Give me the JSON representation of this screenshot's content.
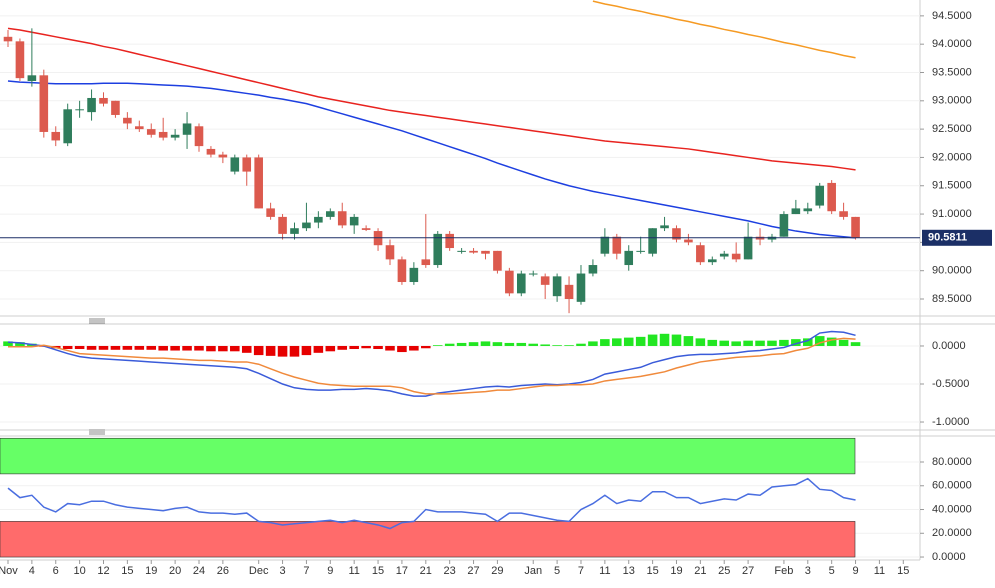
{
  "chart_data": [
    {
      "type": "candlestick",
      "open": [
        94.13,
        94.05,
        93.35,
        93.45,
        92.45,
        92.25,
        92.85,
        92.8,
        93.05,
        93.0,
        92.7,
        92.55,
        92.5,
        92.45,
        92.35,
        92.4,
        92.55,
        92.15,
        92.05,
        91.75,
        92.0,
        92.0,
        91.1,
        90.95,
        90.65,
        90.75,
        90.85,
        90.95,
        91.05,
        90.8,
        90.75,
        90.7,
        90.45,
        90.2,
        89.8,
        90.2,
        90.1,
        90.65,
        90.35,
        90.35,
        90.35,
        90.35,
        90.0,
        89.6,
        89.95,
        89.9,
        89.55,
        89.75,
        89.45,
        89.95,
        90.3,
        90.6,
        90.1,
        90.35,
        90.3,
        90.75,
        90.75,
        90.55,
        90.45,
        90.15,
        90.25,
        90.3,
        90.2,
        90.6,
        90.55,
        90.6,
        91.0,
        91.05,
        91.15,
        91.55,
        91.05,
        90.95
      ],
      "high": [
        94.25,
        94.1,
        94.28,
        93.55,
        92.55,
        92.95,
        93.0,
        93.2,
        93.15,
        93.0,
        92.8,
        92.65,
        92.6,
        92.7,
        92.5,
        92.8,
        92.6,
        92.2,
        92.1,
        92.05,
        92.05,
        92.05,
        91.2,
        91.0,
        90.85,
        91.2,
        91.05,
        91.1,
        91.2,
        91.0,
        90.8,
        90.75,
        90.55,
        90.25,
        90.15,
        91.0,
        90.7,
        90.7,
        90.4,
        90.4,
        90.35,
        90.35,
        90.05,
        90.0,
        90.0,
        89.95,
        89.95,
        89.9,
        90.1,
        90.2,
        90.75,
        90.65,
        90.45,
        90.6,
        90.75,
        90.95,
        90.8,
        90.65,
        90.5,
        90.25,
        90.35,
        90.5,
        90.85,
        90.75,
        90.65,
        91.05,
        91.25,
        91.2,
        91.55,
        91.6,
        91.2,
        90.95
      ],
      "low": [
        93.95,
        93.35,
        93.25,
        92.35,
        92.2,
        92.2,
        92.7,
        92.65,
        92.9,
        92.7,
        92.5,
        92.45,
        92.35,
        92.3,
        92.3,
        92.15,
        92.1,
        92.0,
        91.9,
        91.7,
        91.5,
        91.1,
        90.9,
        90.55,
        90.55,
        90.7,
        90.75,
        90.9,
        90.75,
        90.65,
        90.7,
        90.35,
        90.1,
        89.75,
        89.75,
        90.05,
        90.05,
        90.35,
        90.3,
        90.3,
        90.2,
        89.95,
        89.55,
        89.55,
        89.9,
        89.5,
        89.45,
        89.25,
        89.4,
        89.9,
        90.25,
        90.2,
        90.0,
        90.3,
        90.25,
        90.7,
        90.5,
        90.45,
        90.1,
        90.1,
        90.2,
        90.15,
        90.2,
        90.45,
        90.5,
        90.6,
        91.0,
        91.0,
        91.1,
        91.0,
        90.9,
        90.55
      ],
      "close": [
        94.05,
        93.4,
        93.45,
        92.45,
        92.3,
        92.85,
        92.85,
        93.05,
        92.95,
        92.75,
        92.6,
        92.5,
        92.4,
        92.35,
        92.4,
        92.6,
        92.2,
        92.05,
        92.0,
        92.0,
        91.75,
        91.1,
        90.95,
        90.65,
        90.75,
        90.85,
        90.95,
        91.05,
        90.8,
        90.95,
        90.72,
        90.45,
        90.2,
        89.8,
        90.05,
        90.1,
        90.65,
        90.4,
        90.35,
        90.32,
        90.3,
        90.0,
        89.6,
        89.95,
        89.95,
        89.75,
        89.9,
        89.5,
        89.95,
        90.1,
        90.6,
        90.3,
        90.35,
        90.35,
        90.75,
        90.8,
        90.55,
        90.5,
        90.15,
        90.2,
        90.3,
        90.2,
        90.6,
        90.55,
        90.6,
        91.0,
        91.1,
        91.1,
        91.5,
        91.05,
        90.95,
        90.58
      ],
      "up_color": "#2f7d5c",
      "down_color": "#dc5a4e",
      "xlim": [
        -0.67,
        76.4
      ],
      "ylim": [
        89.2,
        94.78
      ],
      "yticks": [
        {
          "value": 94.5,
          "label": "94.5000"
        },
        {
          "value": 94,
          "label": "94.0000"
        },
        {
          "value": 93.5,
          "label": "93.5000"
        },
        {
          "value": 93,
          "label": "93.0000"
        },
        {
          "value": 92.5,
          "label": "92.5000"
        },
        {
          "value": 92,
          "label": "92.0000"
        },
        {
          "value": 91.5,
          "label": "91.5000"
        },
        {
          "value": 91,
          "label": "91.0000"
        },
        {
          "value": 90.5,
          "label": "90.5000"
        },
        {
          "value": 90,
          "label": "90.0000"
        },
        {
          "value": 89.5,
          "label": "89.5000"
        }
      ],
      "series": [
        {
          "color": "#e8231f",
          "values": [
            94.28,
            94.25,
            94.21,
            94.17,
            94.13,
            94.09,
            94.05,
            94.01,
            93.96,
            93.92,
            93.87,
            93.82,
            93.77,
            93.72,
            93.67,
            93.62,
            93.57,
            93.52,
            93.47,
            93.42,
            93.37,
            93.32,
            93.27,
            93.22,
            93.17,
            93.12,
            93.07,
            93.03,
            92.99,
            92.95,
            92.91,
            92.87,
            92.83,
            92.8,
            92.77,
            92.74,
            92.71,
            92.68,
            92.65,
            92.62,
            92.59,
            92.56,
            92.53,
            92.5,
            92.47,
            92.44,
            92.41,
            92.38,
            92.35,
            92.32,
            92.29,
            92.27,
            92.25,
            92.23,
            92.21,
            92.19,
            92.17,
            92.15,
            92.12,
            92.09,
            92.06,
            92.03,
            92.0,
            91.97,
            91.94,
            91.92,
            91.9,
            91.88,
            91.86,
            91.84,
            91.81,
            91.78
          ]
        },
        {
          "color": "#1d3fe0",
          "values": [
            93.35,
            93.33,
            93.32,
            93.31,
            93.3,
            93.3,
            93.3,
            93.3,
            93.31,
            93.31,
            93.31,
            93.3,
            93.29,
            93.28,
            93.27,
            93.26,
            93.24,
            93.22,
            93.19,
            93.16,
            93.13,
            93.1,
            93.06,
            93.03,
            92.99,
            92.95,
            92.89,
            92.83,
            92.77,
            92.71,
            92.65,
            92.59,
            92.53,
            92.47,
            92.4,
            92.33,
            92.26,
            92.19,
            92.12,
            92.05,
            91.98,
            91.9,
            91.83,
            91.76,
            91.69,
            91.62,
            91.56,
            91.5,
            91.45,
            91.4,
            91.36,
            91.32,
            91.28,
            91.24,
            91.2,
            91.16,
            91.12,
            91.08,
            91.04,
            91.0,
            90.96,
            90.92,
            90.88,
            90.83,
            90.78,
            90.74,
            90.7,
            90.67,
            90.64,
            90.62,
            90.6,
            90.58
          ]
        },
        {
          "color": "#f59a23",
          "values": [
            null,
            null,
            null,
            null,
            null,
            null,
            null,
            null,
            null,
            null,
            null,
            null,
            null,
            null,
            null,
            null,
            null,
            null,
            null,
            null,
            null,
            null,
            null,
            null,
            null,
            null,
            null,
            null,
            null,
            null,
            null,
            null,
            null,
            null,
            null,
            null,
            null,
            null,
            null,
            null,
            null,
            null,
            null,
            null,
            null,
            null,
            null,
            null,
            null,
            94.76,
            94.71,
            94.67,
            94.62,
            94.58,
            94.53,
            94.49,
            94.44,
            94.4,
            94.35,
            94.31,
            94.26,
            94.22,
            94.17,
            94.13,
            94.08,
            94.03,
            93.99,
            93.94,
            93.89,
            93.85,
            93.8,
            93.76
          ]
        }
      ],
      "last_price": 90.5811,
      "last_price_color": "#1b2f66"
    },
    {
      "type": "macd",
      "xlim": [
        -0.67,
        76.4
      ],
      "ylim": [
        -1.105,
        0.289
      ],
      "yticks": [
        {
          "value": 0,
          "label": "0.0000"
        },
        {
          "value": -0.5,
          "label": "-0.5000"
        },
        {
          "value": -1,
          "label": "-1.0000"
        }
      ],
      "histogram": {
        "up_color": "#22e622",
        "down_color": "#e60000",
        "values": [
          0.06,
          0.05,
          0.03,
          -0.01,
          -0.03,
          -0.04,
          -0.04,
          -0.05,
          -0.05,
          -0.05,
          -0.05,
          -0.05,
          -0.05,
          -0.06,
          -0.06,
          -0.06,
          -0.06,
          -0.07,
          -0.07,
          -0.07,
          -0.09,
          -0.12,
          -0.13,
          -0.14,
          -0.14,
          -0.12,
          -0.09,
          -0.07,
          -0.05,
          -0.04,
          -0.03,
          -0.04,
          -0.06,
          -0.08,
          -0.06,
          -0.03,
          0.01,
          0.03,
          0.04,
          0.05,
          0.06,
          0.05,
          0.04,
          0.04,
          0.03,
          0.02,
          0.01,
          0.01,
          0.03,
          0.06,
          0.09,
          0.1,
          0.11,
          0.12,
          0.15,
          0.16,
          0.15,
          0.13,
          0.1,
          0.08,
          0.07,
          0.06,
          0.07,
          0.07,
          0.07,
          0.08,
          0.09,
          0.1,
          0.13,
          0.11,
          0.08,
          0.05
        ]
      },
      "series": [
        {
          "color": "#3a5bd9",
          "values": [
            0.05,
            0.04,
            0.02,
            0.0,
            -0.05,
            -0.1,
            -0.14,
            -0.16,
            -0.17,
            -0.18,
            -0.19,
            -0.2,
            -0.21,
            -0.22,
            -0.23,
            -0.24,
            -0.25,
            -0.26,
            -0.27,
            -0.28,
            -0.3,
            -0.36,
            -0.43,
            -0.5,
            -0.55,
            -0.57,
            -0.58,
            -0.58,
            -0.57,
            -0.57,
            -0.56,
            -0.57,
            -0.59,
            -0.63,
            -0.66,
            -0.66,
            -0.62,
            -0.6,
            -0.58,
            -0.56,
            -0.54,
            -0.53,
            -0.54,
            -0.52,
            -0.51,
            -0.5,
            -0.51,
            -0.5,
            -0.48,
            -0.44,
            -0.37,
            -0.34,
            -0.31,
            -0.28,
            -0.22,
            -0.18,
            -0.14,
            -0.12,
            -0.11,
            -0.11,
            -0.1,
            -0.09,
            -0.07,
            -0.06,
            -0.04,
            -0.02,
            0.03,
            0.07,
            0.17,
            0.19,
            0.18,
            0.14
          ]
        },
        {
          "color": "#f08a3c",
          "values": [
            -0.01,
            -0.01,
            -0.01,
            0.01,
            -0.02,
            -0.06,
            -0.1,
            -0.11,
            -0.12,
            -0.13,
            -0.14,
            -0.15,
            -0.16,
            -0.16,
            -0.17,
            -0.18,
            -0.19,
            -0.19,
            -0.2,
            -0.21,
            -0.21,
            -0.24,
            -0.3,
            -0.36,
            -0.41,
            -0.45,
            -0.49,
            -0.51,
            -0.52,
            -0.53,
            -0.53,
            -0.53,
            -0.53,
            -0.55,
            -0.6,
            -0.63,
            -0.63,
            -0.63,
            -0.62,
            -0.61,
            -0.6,
            -0.58,
            -0.58,
            -0.56,
            -0.54,
            -0.52,
            -0.52,
            -0.51,
            -0.51,
            -0.5,
            -0.46,
            -0.44,
            -0.42,
            -0.4,
            -0.37,
            -0.34,
            -0.29,
            -0.25,
            -0.21,
            -0.19,
            -0.17,
            -0.15,
            -0.14,
            -0.13,
            -0.11,
            -0.1,
            -0.06,
            -0.03,
            0.04,
            0.08,
            0.1,
            0.09
          ]
        }
      ]
    },
    {
      "type": "line",
      "xlim": [
        -0.67,
        76.4
      ],
      "ylim": [
        -2.5,
        101.9
      ],
      "yticks": [
        {
          "value": 80,
          "label": "80.0000"
        },
        {
          "value": 60,
          "label": "60.0000"
        },
        {
          "value": 40,
          "label": "40.0000"
        },
        {
          "value": 20,
          "label": "20.0000"
        },
        {
          "value": 0,
          "label": "0.0000"
        }
      ],
      "bands": [
        {
          "range": [
            70,
            100
          ],
          "color": "#66ff66"
        },
        {
          "range": [
            0,
            30
          ],
          "color": "#ff6b6b"
        }
      ],
      "series": [
        {
          "color": "#4a6ee0",
          "values": [
            58,
            50,
            52,
            42,
            38,
            45,
            44,
            47,
            47,
            44,
            42,
            41,
            40,
            39,
            41,
            42,
            38,
            37,
            37,
            36,
            37,
            30,
            29,
            27,
            28,
            29,
            30,
            31,
            29,
            31,
            29,
            27,
            24,
            29,
            30,
            40,
            38,
            38,
            38,
            37,
            36,
            30,
            37,
            37,
            35,
            33,
            31,
            30,
            40,
            45,
            52,
            45,
            48,
            47,
            55,
            55,
            50,
            50,
            45,
            47,
            49,
            48,
            53,
            52,
            59,
            60,
            61,
            66,
            57,
            56,
            50,
            48
          ]
        }
      ],
      "xticks": [
        {
          "value": 0,
          "label": "Nov"
        },
        {
          "value": 2,
          "label": "4"
        },
        {
          "value": 4,
          "label": "6"
        },
        {
          "value": 6,
          "label": "10"
        },
        {
          "value": 8,
          "label": "12"
        },
        {
          "value": 10,
          "label": "15"
        },
        {
          "value": 12,
          "label": "19"
        },
        {
          "value": 14,
          "label": "20"
        },
        {
          "value": 16,
          "label": "24"
        },
        {
          "value": 18,
          "label": "26"
        },
        {
          "value": 21,
          "label": "Dec"
        },
        {
          "value": 23,
          "label": "3"
        },
        {
          "value": 25,
          "label": "7"
        },
        {
          "value": 27,
          "label": "9"
        },
        {
          "value": 29,
          "label": "11"
        },
        {
          "value": 31,
          "label": "15"
        },
        {
          "value": 33,
          "label": "17"
        },
        {
          "value": 35,
          "label": "21"
        },
        {
          "value": 37,
          "label": "23"
        },
        {
          "value": 39,
          "label": "27"
        },
        {
          "value": 41,
          "label": "29"
        },
        {
          "value": 44,
          "label": "Jan"
        },
        {
          "value": 46,
          "label": "5"
        },
        {
          "value": 48,
          "label": "7"
        },
        {
          "value": 50,
          "label": "11"
        },
        {
          "value": 52,
          "label": "13"
        },
        {
          "value": 54,
          "label": "15"
        },
        {
          "value": 56,
          "label": "19"
        },
        {
          "value": 58,
          "label": "21"
        },
        {
          "value": 60,
          "label": "25"
        },
        {
          "value": 62,
          "label": "27"
        },
        {
          "value": 65,
          "label": "Feb"
        },
        {
          "value": 67,
          "label": "3"
        },
        {
          "value": 69,
          "label": "5"
        },
        {
          "value": 71,
          "label": "9"
        },
        {
          "value": 73,
          "label": "11"
        },
        {
          "value": 75,
          "label": "15"
        }
      ]
    }
  ]
}
